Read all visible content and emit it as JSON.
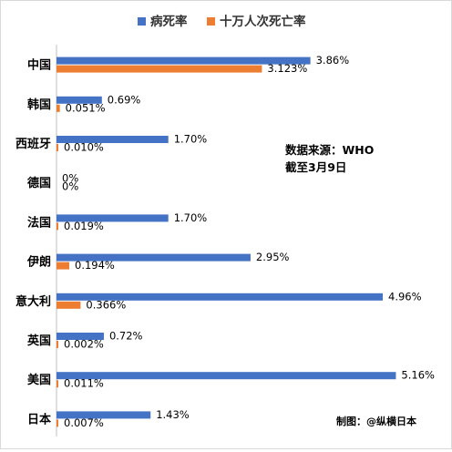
{
  "chart_data": {
    "type": "bar",
    "orientation": "horizontal",
    "categories": [
      "中国",
      "韩国",
      "西班牙",
      "德国",
      "法国",
      "伊朗",
      "意大利",
      "英国",
      "美国",
      "日本"
    ],
    "series": [
      {
        "name": "病死率",
        "color": "#4472c4",
        "values": [
          3.86,
          0.69,
          1.7,
          0,
          1.7,
          2.95,
          4.96,
          0.72,
          5.16,
          1.43
        ],
        "labels": [
          "3.86%",
          "0.69%",
          "1.70%",
          "0%",
          "1.70%",
          "2.95%",
          "4.96%",
          "0.72%",
          "5.16%",
          "1.43%"
        ]
      },
      {
        "name": "十万人次死亡率",
        "color": "#ed7d31",
        "values": [
          3.123,
          0.051,
          0.01,
          0,
          0.019,
          0.194,
          0.366,
          0.002,
          0.011,
          0.007
        ],
        "labels": [
          "3.123%",
          "0.051%",
          "0.010%",
          "0%",
          "0.019%",
          "0.194%",
          "0.366%",
          "0.002%",
          "0.011%",
          "0.007%"
        ]
      }
    ],
    "xlim": [
      0,
      5.6
    ],
    "legend_position": "top",
    "grid": false,
    "annotation": [
      "数据来源：WHO",
      "截至3月9日"
    ],
    "credit": "制图：@纵横日本"
  }
}
